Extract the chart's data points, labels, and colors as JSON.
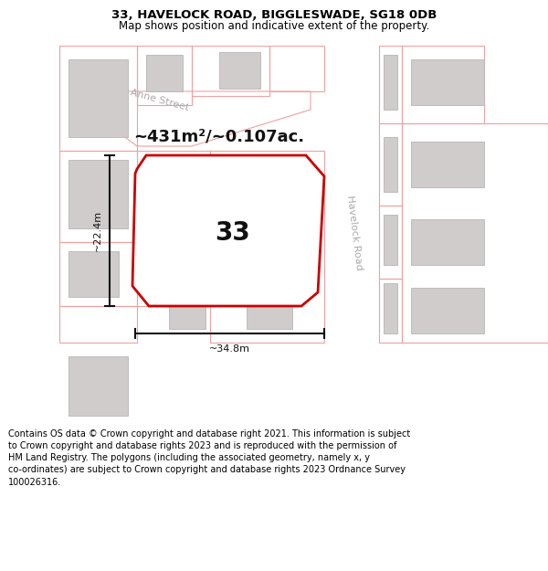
{
  "title_line1": "33, HAVELOCK ROAD, BIGGLESWADE, SG18 0DB",
  "title_line2": "Map shows position and indicative extent of the property.",
  "footer_text": "Contains OS data © Crown copyright and database right 2021. This information is subject\nto Crown copyright and database rights 2023 and is reproduced with the permission of\nHM Land Registry. The polygons (including the associated geometry, namely x, y\nco-ordinates) are subject to Crown copyright and database rights 2023 Ordnance Survey\n100026316.",
  "area_label": "~431m²/~0.107ac.",
  "number_label": "33",
  "dim_width": "~34.8m",
  "dim_height": "~22.4m",
  "street_anne": "Anne Street",
  "street_havelock": "Havelock Road",
  "map_bg": "#ede9e9",
  "road_fill": "#ffffff",
  "building_fill": "#d0cccc",
  "building_edge": "#b8b4b4",
  "pink": "#f0a0a0",
  "red": "#cc0000",
  "line_color": "#111111",
  "title_fontsize": 9.5,
  "subtitle_fontsize": 8.5,
  "footer_fontsize": 7.0,
  "area_fontsize": 13,
  "number_fontsize": 20,
  "street_fontsize": 8,
  "dim_fontsize": 8
}
